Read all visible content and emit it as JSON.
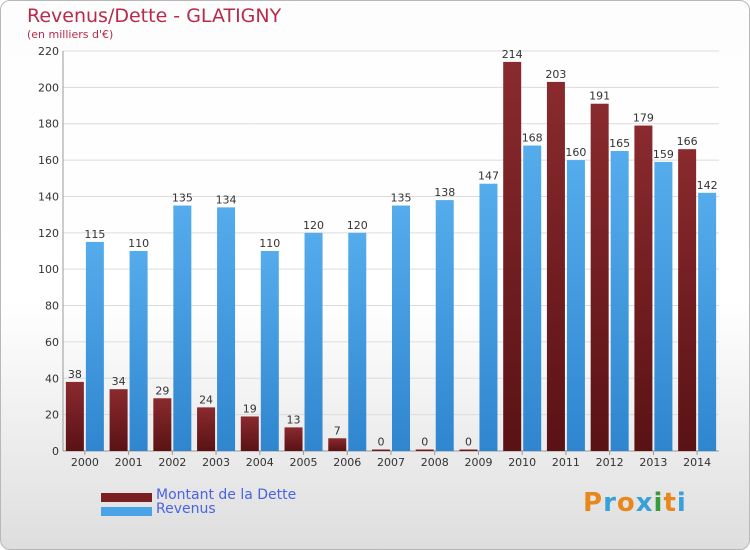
{
  "header": {
    "title": "Revenus/Dette - GLATIGNY",
    "subtitle": "(en milliers d'€)"
  },
  "colors": {
    "dette": "#7a1f22",
    "revenus": "#4aa3e6",
    "title": "#b82a4a"
  },
  "logo": {
    "letters": [
      "P",
      "r",
      "o",
      "x",
      "i",
      "t",
      "i"
    ],
    "colors": [
      "#e8881c",
      "#39a0d8",
      "#e8881c",
      "#39a0d8",
      "#3a9a3a",
      "#e8881c",
      "#39a0d8"
    ]
  },
  "chart_data": {
    "type": "bar",
    "title": "Revenus/Dette - GLATIGNY",
    "ylabel": "(en milliers d'€)",
    "ylim": [
      0,
      220
    ],
    "yticks": [
      0,
      20,
      40,
      60,
      80,
      100,
      120,
      140,
      160,
      180,
      200,
      220
    ],
    "grid": true,
    "legend_position": "bottom-left",
    "categories": [
      "2000",
      "2001",
      "2002",
      "2003",
      "2004",
      "2005",
      "2006",
      "2007",
      "2008",
      "2009",
      "2010",
      "2011",
      "2012",
      "2013",
      "2014"
    ],
    "series": [
      {
        "name": "Montant de la Dette",
        "values": [
          38,
          34,
          29,
          24,
          19,
          13,
          7,
          0,
          0,
          0,
          214,
          203,
          191,
          179,
          166
        ]
      },
      {
        "name": "Revenus",
        "values": [
          115,
          110,
          135,
          134,
          110,
          120,
          120,
          135,
          138,
          147,
          168,
          160,
          165,
          159,
          142
        ]
      }
    ]
  }
}
